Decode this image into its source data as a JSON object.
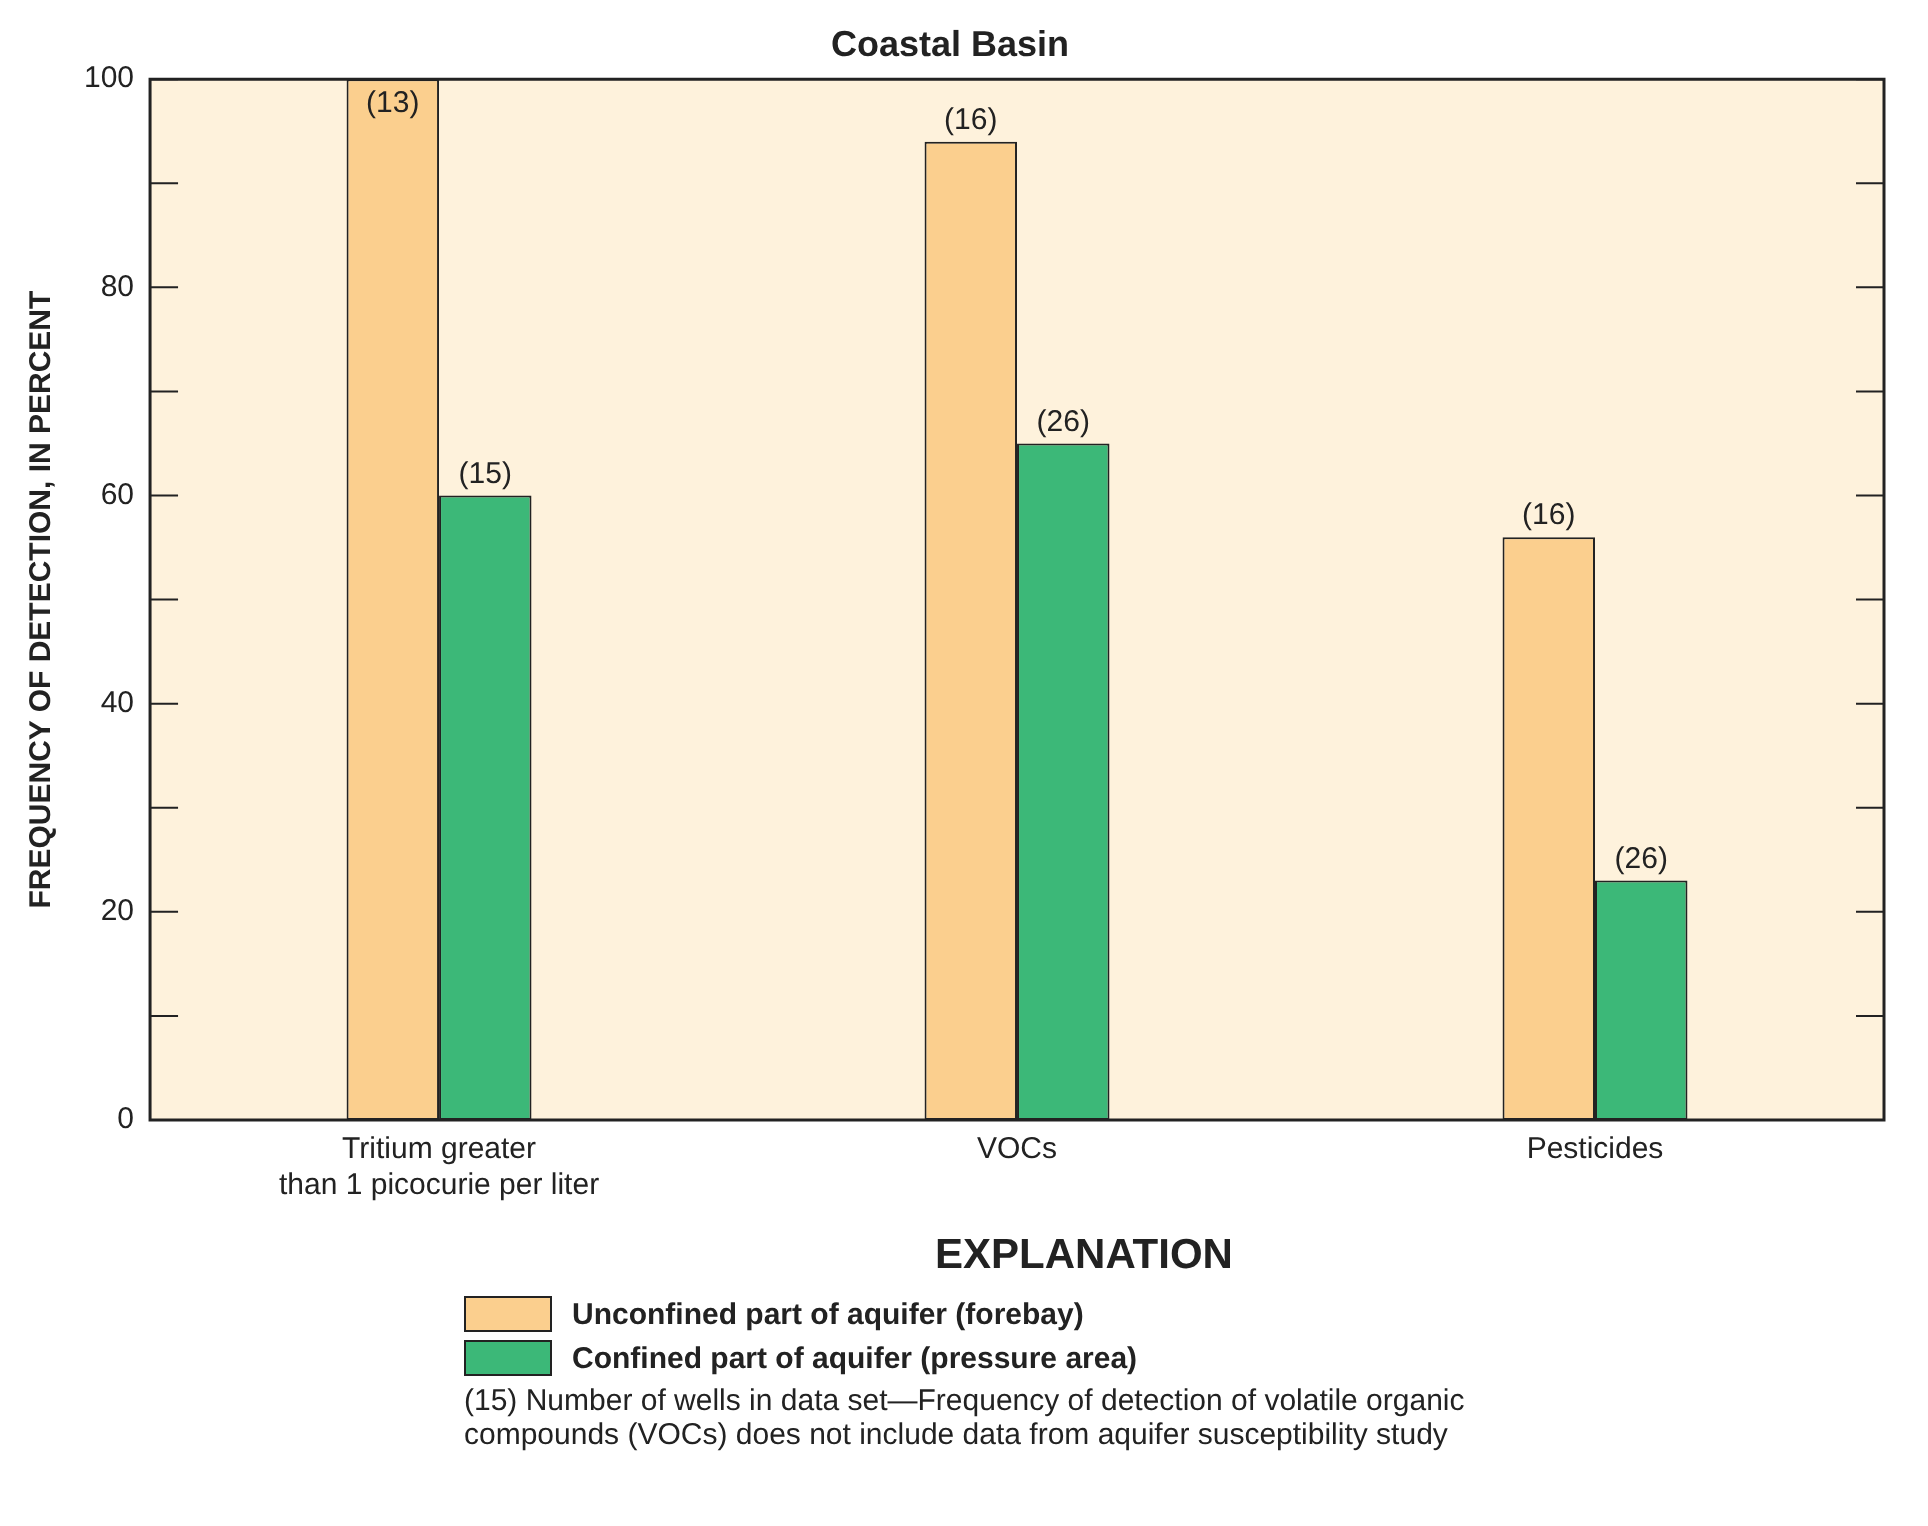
{
  "chart_data": {
    "type": "bar",
    "title": "Coastal Basin",
    "ylabel": "FREQUENCY OF DETECTION, IN PERCENT",
    "legend_title": "EXPLANATION",
    "categories": [
      "Tritium greater\nthan 1 picocurie per liter",
      "VOCs",
      "Pesticides"
    ],
    "series": [
      {
        "name": "Unconfined part of aquifer (forebay)",
        "color": "#fbcf8e",
        "values": [
          100,
          94,
          56
        ]
      },
      {
        "name": "Confined part of aquifer (pressure area)",
        "color": "#3cb878",
        "values": [
          60,
          65,
          23
        ]
      }
    ],
    "ylim": [
      0,
      100
    ],
    "yticks": [
      0,
      {
        "value": 10,
        "label": null
      },
      20,
      {
        "value": 30,
        "label": null
      },
      40,
      {
        "value": 50,
        "label": null
      },
      60,
      {
        "value": 70,
        "label": null
      },
      80,
      {
        "value": 90,
        "label": null
      },
      100
    ],
    "grid": false,
    "legend": "bottom",
    "annotations": [
      {
        "text": "(13)",
        "x": "Tritium greater\nthan 1 picocurie per liter",
        "y": 100
      },
      {
        "text": "(15)",
        "x": "Tritium greater\nthan 1 picocurie per liter",
        "y": 60
      },
      {
        "text": "(16)",
        "x": "VOCs",
        "y": 94
      },
      {
        "text": "(26)",
        "x": "VOCs",
        "y": 65
      },
      {
        "text": "(16)",
        "x": "Pesticides",
        "y": 56
      },
      {
        "text": "(26)",
        "x": "Pesticides",
        "y": 23
      },
      "(15) Number of wells in data set—Frequency of detection of volatile organic compounds (VOCs) does not include data from aquifer susceptibility study"
    ]
  }
}
